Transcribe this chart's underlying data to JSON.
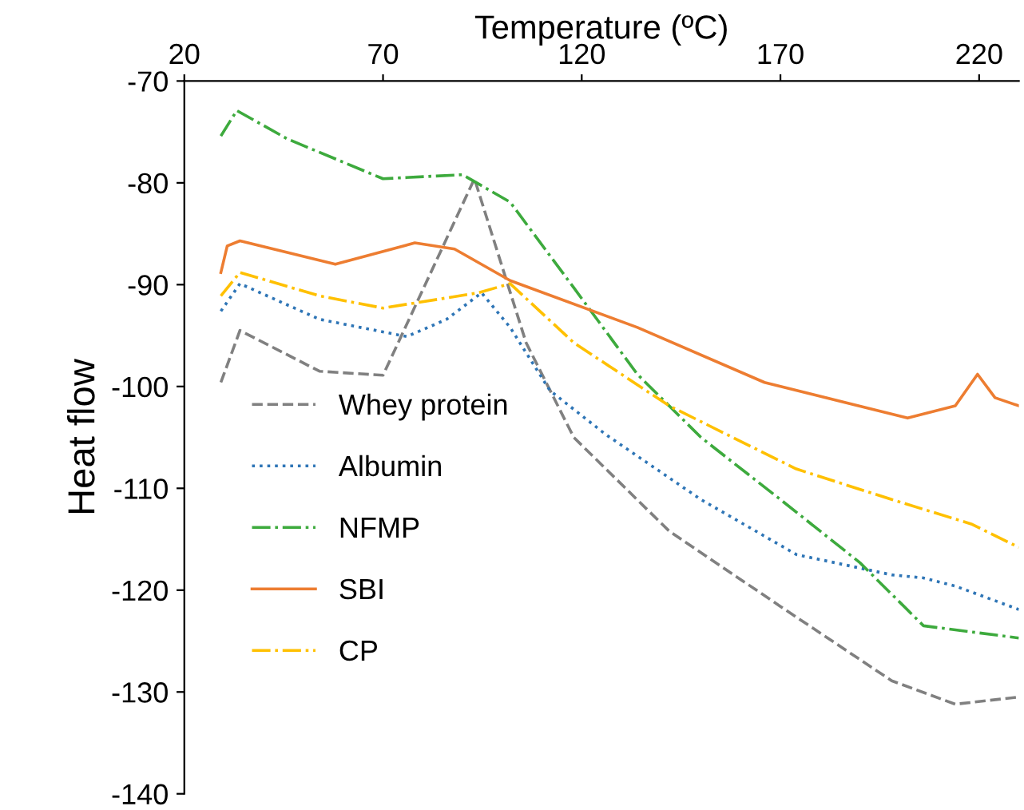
{
  "chart_data": {
    "type": "line",
    "xlabel": "Temperature (ºC)",
    "ylabel": "Heat flow",
    "xlim": [
      20,
      230
    ],
    "xticks": [
      20,
      70,
      120,
      170,
      220
    ],
    "ylim": [
      -140,
      -70
    ],
    "yticks": [
      -140,
      -130,
      -120,
      -110,
      -100,
      -90,
      -80,
      -70
    ],
    "grid": false,
    "legend": "left",
    "marker": "none",
    "series": [
      {
        "name": "Whey protein",
        "color": "#808080",
        "line_style": "dashed",
        "x": [
          29.2,
          34,
          54,
          70,
          93,
          106,
          118,
          142,
          170,
          198,
          214,
          230
        ],
        "values": [
          -99.6,
          -94.5,
          -98.5,
          -98.9,
          -79.6,
          -95.7,
          -105,
          -114.2,
          -121.6,
          -128.9,
          -131.2,
          -130.5
        ]
      },
      {
        "name": "Albumin",
        "color": "#2e75b6",
        "line_style": "dotted",
        "x": [
          29.2,
          34,
          54,
          76,
          86,
          94.8,
          102,
          112,
          126,
          150,
          174,
          198,
          206,
          214,
          230
        ],
        "values": [
          -92.6,
          -89.9,
          -93.4,
          -95.1,
          -93.4,
          -90.8,
          -94.2,
          -100.4,
          -104.7,
          -111.1,
          -116.5,
          -118.5,
          -118.8,
          -119.6,
          -121.9
        ]
      },
      {
        "name": "NFMP",
        "color": "#3daa3d",
        "line_style": "dashdot",
        "x": [
          29.2,
          33.2,
          46,
          70,
          90,
          102,
          118,
          134,
          150,
          170,
          190,
          206,
          230
        ],
        "values": [
          -75.4,
          -72.9,
          -75.7,
          -79.6,
          -79.2,
          -81.9,
          -90.3,
          -98.8,
          -105,
          -111.1,
          -117.3,
          -123.5,
          -124.7
        ]
      },
      {
        "name": "SBI",
        "color": "#ed7d31",
        "line_style": "solid",
        "x": [
          29.2,
          30.8,
          34,
          58,
          78,
          88,
          102,
          134,
          166,
          202,
          214,
          219.6,
          224,
          230
        ],
        "values": [
          -88.8,
          -86.2,
          -85.7,
          -88,
          -85.9,
          -86.5,
          -89.6,
          -94.2,
          -99.6,
          -103.1,
          -101.9,
          -98.8,
          -101.1,
          -101.9
        ]
      },
      {
        "name": "CP",
        "color": "#ffc000",
        "line_style": "dashdot",
        "x": [
          29.2,
          34,
          54,
          70,
          94,
          102,
          118,
          142,
          174,
          198,
          218,
          230
        ],
        "values": [
          -91.1,
          -88.8,
          -91.1,
          -92.3,
          -90.8,
          -89.9,
          -95.7,
          -101.9,
          -108.1,
          -111.1,
          -113.5,
          -115.8
        ]
      }
    ]
  }
}
